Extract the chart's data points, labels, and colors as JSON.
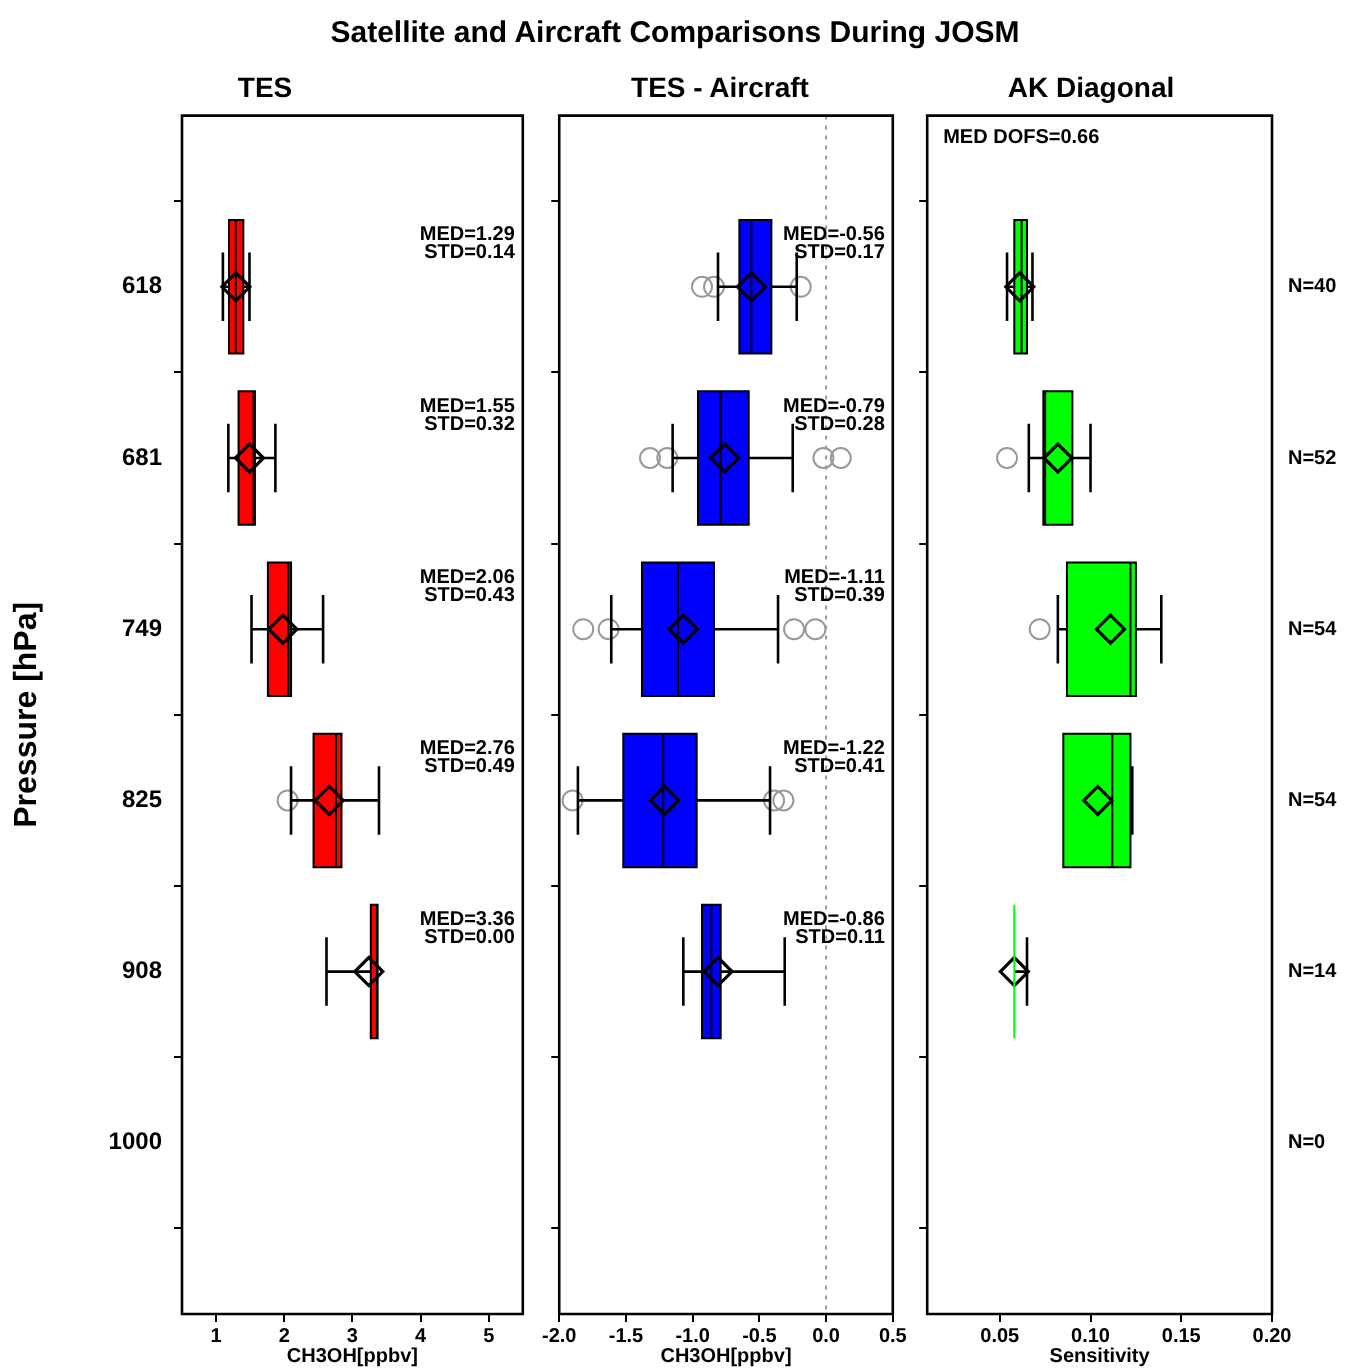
{
  "chart_data": [
    {
      "type": "box",
      "title": "TES",
      "xlabel": "CH3OH[ppbv]",
      "ylabel": "Pressure [hPa]",
      "orientation": "horizontal",
      "color": "#ff0000",
      "marker": "diamond",
      "categories": [
        "618",
        "681",
        "749",
        "825",
        "908",
        "1000"
      ],
      "boxes": [
        {
          "low": 1.1,
          "q1": 1.19,
          "median": 1.29,
          "q3": 1.4,
          "high": 1.49,
          "mean": 1.29
        },
        {
          "low": 1.18,
          "q1": 1.33,
          "median": 1.55,
          "q3": 1.57,
          "high": 1.87,
          "mean": 1.49
        },
        {
          "low": 1.52,
          "q1": 1.76,
          "median": 2.06,
          "q3": 2.1,
          "high": 2.57,
          "mean": 1.98
        },
        {
          "low": 2.1,
          "q1": 2.43,
          "median": 2.76,
          "q3": 2.84,
          "high": 3.39,
          "mean": 2.66,
          "outliers": [
            2.05
          ]
        },
        {
          "low": 2.62,
          "q1": 3.27,
          "median": 3.36,
          "q3": 3.37,
          "high": 3.37,
          "mean": 3.24
        },
        null
      ],
      "xlim": [
        0.5,
        5.5
      ],
      "xticks": [
        1,
        2,
        3,
        4,
        5
      ],
      "annotations": [
        "Satellite and Aircraft Comparisons During JOSM",
        "MED=1.29\nSTD=0.14",
        "MED=1.55\nSTD=0.32",
        "MED=2.06\nSTD=0.43",
        "MED=2.76\nSTD=0.49",
        "MED=3.36\nSTD=0.00"
      ]
    },
    {
      "type": "box",
      "title": "TES - Aircraft",
      "xlabel": "CH3OH[ppbv]",
      "orientation": "horizontal",
      "color": "#0000ff",
      "marker": "diamond",
      "tick_labels": "x",
      "categories": [
        "618",
        "681",
        "749",
        "825",
        "908",
        "1000"
      ],
      "boxes": [
        {
          "low": -0.81,
          "q1": -0.65,
          "median": -0.56,
          "q3": -0.41,
          "high": -0.22,
          "mean": -0.56,
          "outliers": [
            -0.93,
            -0.84,
            -0.19
          ]
        },
        {
          "low": -1.15,
          "q1": -0.96,
          "median": -0.79,
          "q3": -0.58,
          "high": -0.25,
          "mean": -0.76,
          "outliers": [
            -1.32,
            -1.19,
            -0.02,
            0.11
          ]
        },
        {
          "low": -1.61,
          "q1": -1.38,
          "median": -1.11,
          "q3": -0.84,
          "high": -0.36,
          "mean": -1.07,
          "outliers": [
            -1.82,
            -1.63,
            -0.24,
            -0.08
          ]
        },
        {
          "low": -1.86,
          "q1": -1.52,
          "median": -1.22,
          "q3": -0.97,
          "high": -0.42,
          "mean": -1.21,
          "outliers": [
            -1.9,
            -0.39,
            -0.32
          ]
        },
        {
          "low": -1.07,
          "q1": -0.93,
          "median": -0.86,
          "q3": -0.79,
          "high": -0.31,
          "mean": -0.81
        },
        null
      ],
      "xlim": [
        -2,
        0.5
      ],
      "xticks": [
        {
          "value": -2,
          "label": "-2.0"
        },
        {
          "value": -1.5,
          "label": "-1.5"
        },
        {
          "value": -1,
          "label": "-1.0"
        },
        {
          "value": -0.5,
          "label": "-0.5"
        },
        {
          "value": 0,
          "label": "0.0"
        },
        {
          "value": 0.5,
          "label": "0.5"
        }
      ],
      "ref_lines": [
        {
          "axis": "x",
          "value": 0,
          "label": null,
          "color": "#999999",
          "line_style": "dotted"
        }
      ],
      "annotations": [
        "MED=-0.56\nSTD=0.17",
        "MED=-0.79\nSTD=0.28",
        "MED=-1.11\nSTD=0.39",
        "MED=-1.22\nSTD=0.41",
        "MED=-0.86\nSTD=0.11"
      ]
    },
    {
      "type": "box",
      "title": "AK Diagonal",
      "xlabel": "Sensitivity",
      "orientation": "horizontal",
      "color": "#00ff00",
      "marker": "diamond",
      "tick_labels": "x",
      "categories": [
        "618",
        "681",
        "749",
        "825",
        "908",
        "1000"
      ],
      "boxes": [
        {
          "low": 0.054,
          "q1": 0.058,
          "median": 0.062,
          "q3": 0.065,
          "high": 0.068,
          "mean": 0.061
        },
        {
          "low": 0.066,
          "q1": 0.074,
          "median": 0.075,
          "q3": 0.09,
          "high": 0.1,
          "mean": 0.082,
          "outliers": [
            0.054
          ]
        },
        {
          "low": 0.082,
          "q1": 0.087,
          "median": 0.122,
          "q3": 0.125,
          "high": 0.139,
          "mean": 0.111,
          "outliers": [
            0.072
          ]
        },
        {
          "low": 0.085,
          "q1": 0.085,
          "median": 0.112,
          "q3": 0.122,
          "high": 0.123,
          "mean": 0.104
        },
        {
          "low": 0.058,
          "q1": 0.058,
          "median": 0.058,
          "q3": 0.058,
          "high": 0.065,
          "mean": 0.058
        },
        null
      ],
      "xlim": [
        0.01,
        0.2
      ],
      "xticks": [
        {
          "value": 0.05,
          "label": "0.05"
        },
        {
          "value": 0.1,
          "label": "0.10"
        },
        {
          "value": 0.15,
          "label": "0.15"
        },
        {
          "value": 0.2,
          "label": "0.20"
        }
      ],
      "annotations": [
        "MED DOFS=0.66",
        "N=40",
        "N=52",
        "N=54",
        "N=54",
        "N=14",
        "N=0"
      ]
    }
  ]
}
